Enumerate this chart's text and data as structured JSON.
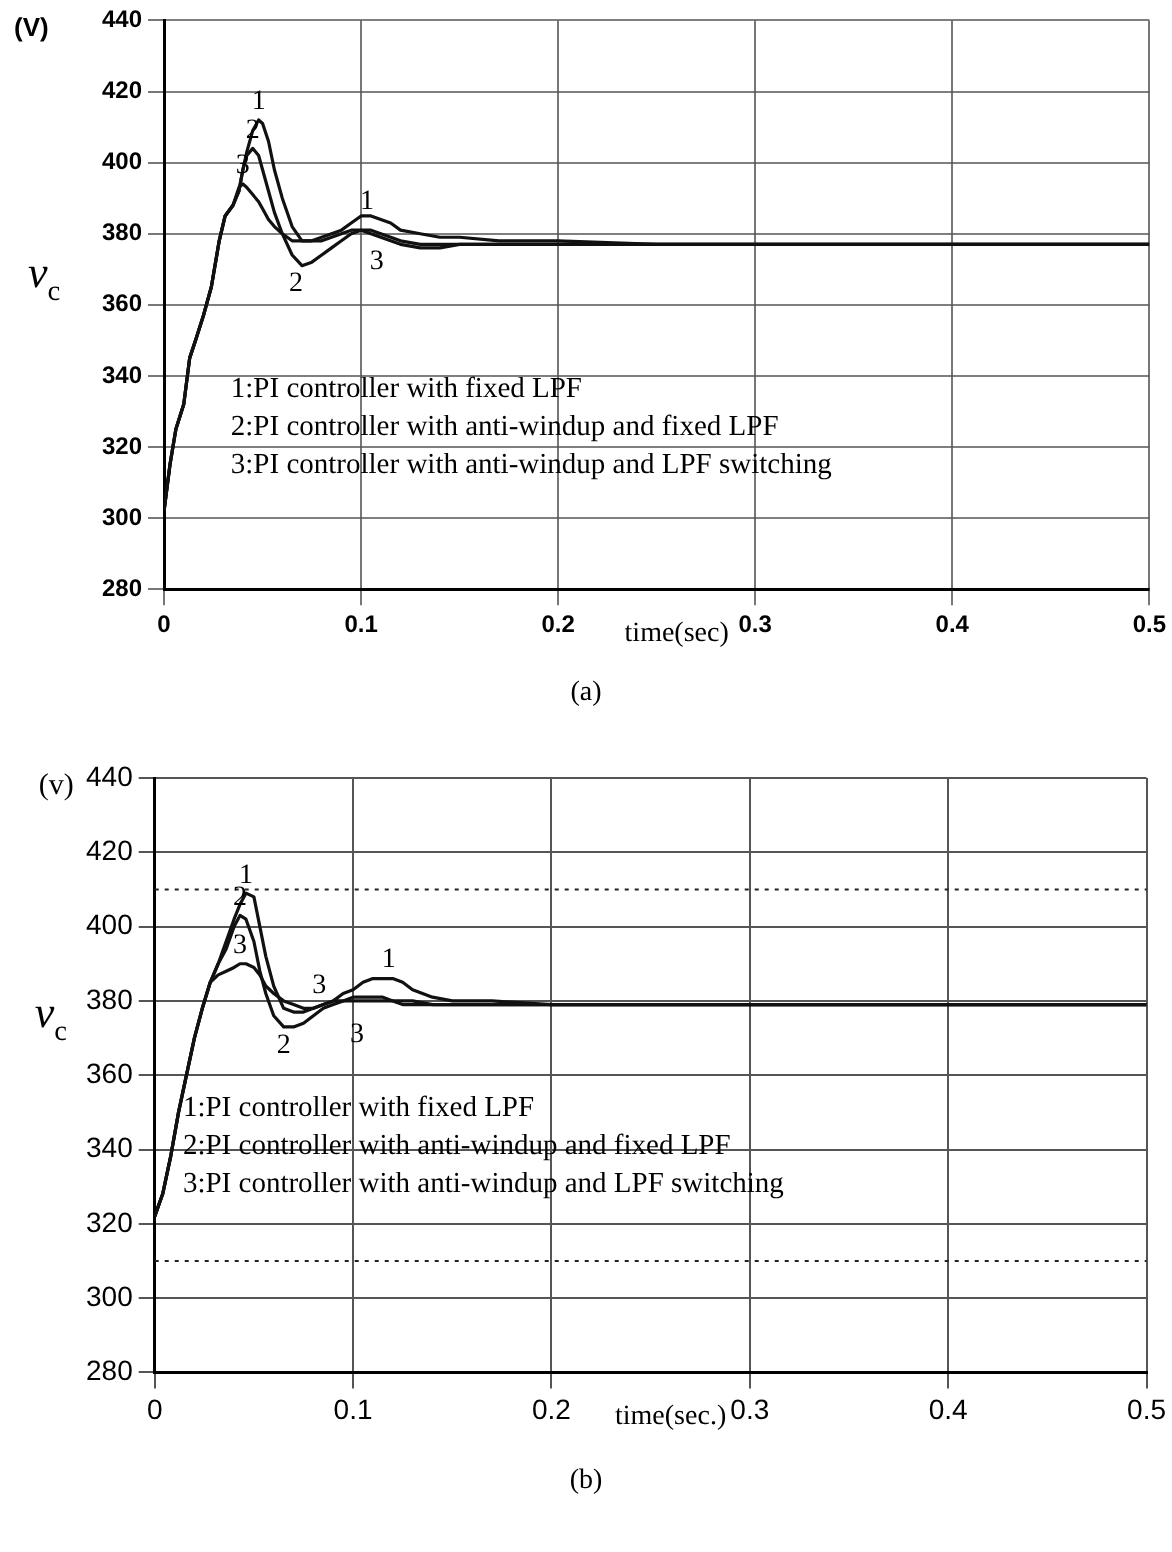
{
  "chart_data": [
    {
      "type": "line",
      "title": "(a)",
      "xlabel": "time(sec)",
      "ylabel": "v$_{c}$",
      "xlim": [
        0,
        0.5
      ],
      "ylim": [
        280,
        440
      ],
      "xticks": [
        0,
        0.1,
        0.2,
        0.3,
        0.4,
        0.5
      ],
      "yticks": [
        280,
        300,
        320,
        340,
        360,
        380,
        400,
        420,
        440
      ],
      "grid": true,
      "line_style": "solid",
      "legend": false,
      "annotations": [
        "(V)",
        "1:PI controller with fixed LPF",
        "2:PI controller with anti-windup and fixed LPF",
        "3:PI controller with anti-windup and LPF switching",
        "1",
        "2",
        "3"
      ],
      "x": [
        0,
        0.003,
        0.006,
        0.01,
        0.013,
        0.016,
        0.02,
        0.024,
        0.028,
        0.031,
        0.035,
        0.038,
        0.04,
        0.042,
        0.045,
        0.048,
        0.05,
        0.053,
        0.056,
        0.06,
        0.065,
        0.07,
        0.075,
        0.08,
        0.085,
        0.09,
        0.095,
        0.1,
        0.105,
        0.11,
        0.115,
        0.12,
        0.13,
        0.14,
        0.15,
        0.17,
        0.2,
        0.25,
        0.3,
        0.35,
        0.4,
        0.45,
        0.5
      ],
      "series": [
        {
          "name": "1",
          "color": "#111111",
          "values": [
            302,
            315,
            325,
            332,
            345,
            350,
            357,
            365,
            378,
            385,
            388,
            392,
            398,
            403,
            409,
            412,
            411,
            406,
            398,
            390,
            382,
            378,
            378,
            379,
            380,
            381,
            383,
            385,
            385,
            384,
            383,
            381,
            380,
            379,
            379,
            378,
            378,
            377,
            377,
            377,
            377,
            377,
            377
          ]
        },
        {
          "name": "2",
          "color": "#111111",
          "values": [
            302,
            315,
            325,
            332,
            345,
            350,
            357,
            365,
            378,
            385,
            388,
            392,
            398,
            402,
            404,
            402,
            398,
            392,
            386,
            380,
            374,
            371,
            372,
            374,
            376,
            378,
            380,
            381,
            381,
            380,
            379,
            378,
            377,
            377,
            377,
            377,
            377,
            377,
            377,
            377,
            377,
            377,
            377
          ]
        },
        {
          "name": "3",
          "color": "#111111",
          "values": [
            302,
            315,
            325,
            332,
            345,
            350,
            357,
            365,
            378,
            385,
            388,
            393,
            394,
            393,
            391,
            389,
            387,
            384,
            382,
            380,
            378,
            378,
            378,
            378,
            379,
            380,
            381,
            381,
            380,
            379,
            378,
            377,
            376,
            376,
            377,
            377,
            377,
            377,
            377,
            377,
            377,
            377,
            377
          ]
        }
      ]
    },
    {
      "type": "line",
      "title": "(b)",
      "xlabel": "time(sec.)",
      "ylabel": "v$_{c}$",
      "xlim": [
        0,
        0.5
      ],
      "ylim": [
        280,
        440
      ],
      "xticks": [
        0,
        0.1,
        0.2,
        0.3,
        0.4,
        0.5
      ],
      "yticks": [
        280,
        300,
        320,
        340,
        360,
        380,
        400,
        420,
        440
      ],
      "grid": true,
      "line_style": "solid",
      "legend": false,
      "ref_lines": [
        {
          "axis": "y",
          "value": 410,
          "line_style": "dotted"
        },
        {
          "axis": "y",
          "value": 310,
          "line_style": "dotted"
        }
      ],
      "annotations": [
        "(v)",
        "1:PI controller with fixed LPF",
        "2:PI controller with anti-windup and fixed LPF",
        "3:PI controller with anti-windup and LPF switching",
        "1",
        "2",
        "3",
        "3"
      ],
      "x": [
        0,
        0.004,
        0.008,
        0.012,
        0.016,
        0.02,
        0.024,
        0.028,
        0.032,
        0.036,
        0.04,
        0.043,
        0.046,
        0.05,
        0.053,
        0.056,
        0.06,
        0.065,
        0.07,
        0.075,
        0.08,
        0.085,
        0.09,
        0.095,
        0.1,
        0.105,
        0.11,
        0.115,
        0.12,
        0.125,
        0.13,
        0.14,
        0.15,
        0.17,
        0.2,
        0.25,
        0.3,
        0.35,
        0.4,
        0.45,
        0.5
      ],
      "series": [
        {
          "name": "1",
          "color": "#111111",
          "values": [
            322,
            328,
            338,
            350,
            360,
            370,
            378,
            385,
            390,
            396,
            402,
            406,
            409,
            408,
            400,
            392,
            384,
            378,
            377,
            377,
            378,
            379,
            380,
            382,
            383,
            385,
            386,
            386,
            386,
            385,
            383,
            381,
            380,
            380,
            379,
            379,
            379,
            379,
            379,
            379,
            379
          ]
        },
        {
          "name": "2",
          "color": "#111111",
          "values": [
            322,
            328,
            338,
            350,
            360,
            370,
            378,
            385,
            390,
            394,
            400,
            403,
            402,
            396,
            388,
            382,
            376,
            373,
            373,
            374,
            376,
            378,
            379,
            380,
            381,
            381,
            381,
            381,
            380,
            380,
            380,
            379,
            379,
            379,
            379,
            379,
            379,
            379,
            379,
            379,
            379
          ]
        },
        {
          "name": "3",
          "color": "#111111",
          "values": [
            322,
            328,
            338,
            350,
            360,
            370,
            378,
            385,
            387,
            388,
            389,
            390,
            390,
            389,
            387,
            384,
            382,
            380,
            379,
            378,
            378,
            379,
            380,
            380,
            380,
            380,
            380,
            380,
            380,
            379,
            379,
            379,
            379,
            379,
            379,
            379,
            379,
            379,
            379,
            379,
            379
          ]
        }
      ]
    }
  ]
}
